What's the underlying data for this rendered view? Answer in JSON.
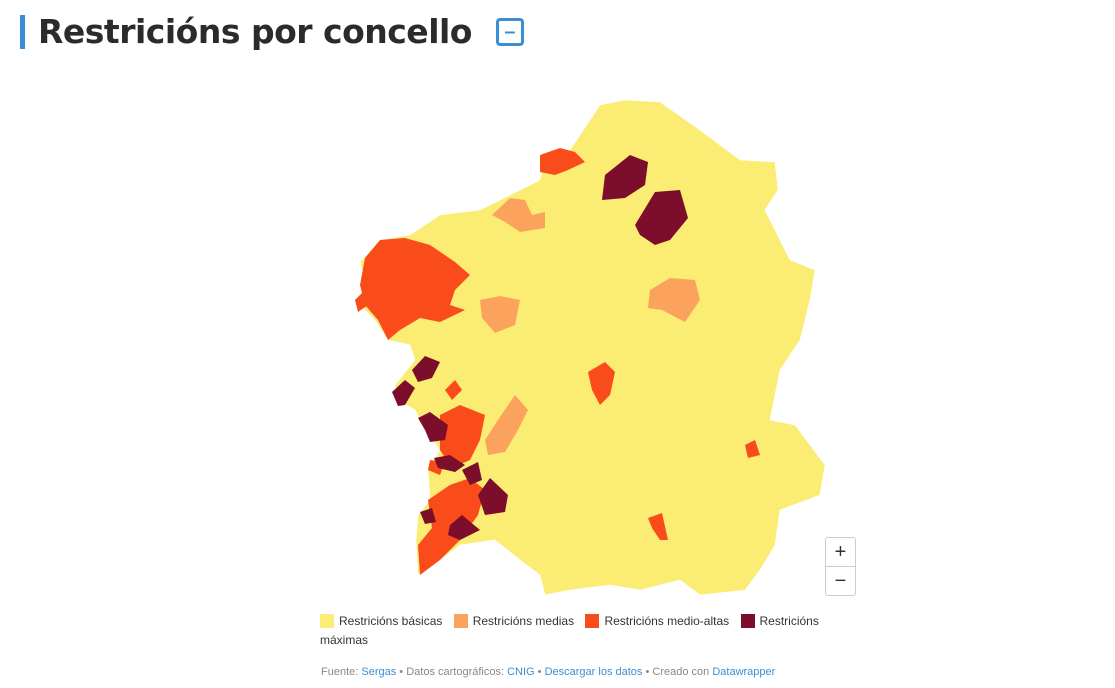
{
  "title": "Restricións por concello",
  "collapse_label": "–",
  "colors": {
    "basicas": "#fbec74",
    "medias": "#fba35c",
    "medio_altas": "#fa4b1a",
    "maximas": "#7c0d2b",
    "accent": "#3a8fd4"
  },
  "legend": [
    {
      "label": "Restricións básicas",
      "color": "#fbec74"
    },
    {
      "label": "Restricións medias",
      "color": "#fba35c"
    },
    {
      "label": "Restricións medio-altas",
      "color": "#fa4b1a"
    },
    {
      "label": "Restricións máximas",
      "color": "#7c0d2b"
    }
  ],
  "zoom": {
    "in": "+",
    "out": "−"
  },
  "footer": {
    "source_label": "Fuente:",
    "source": "Sergas",
    "sep": "•",
    "carto_label": "Datos cartográficos:",
    "carto": "CNIG",
    "download": "Descargar los datos",
    "created_label": "Creado con",
    "tool": "Datawrapper"
  }
}
